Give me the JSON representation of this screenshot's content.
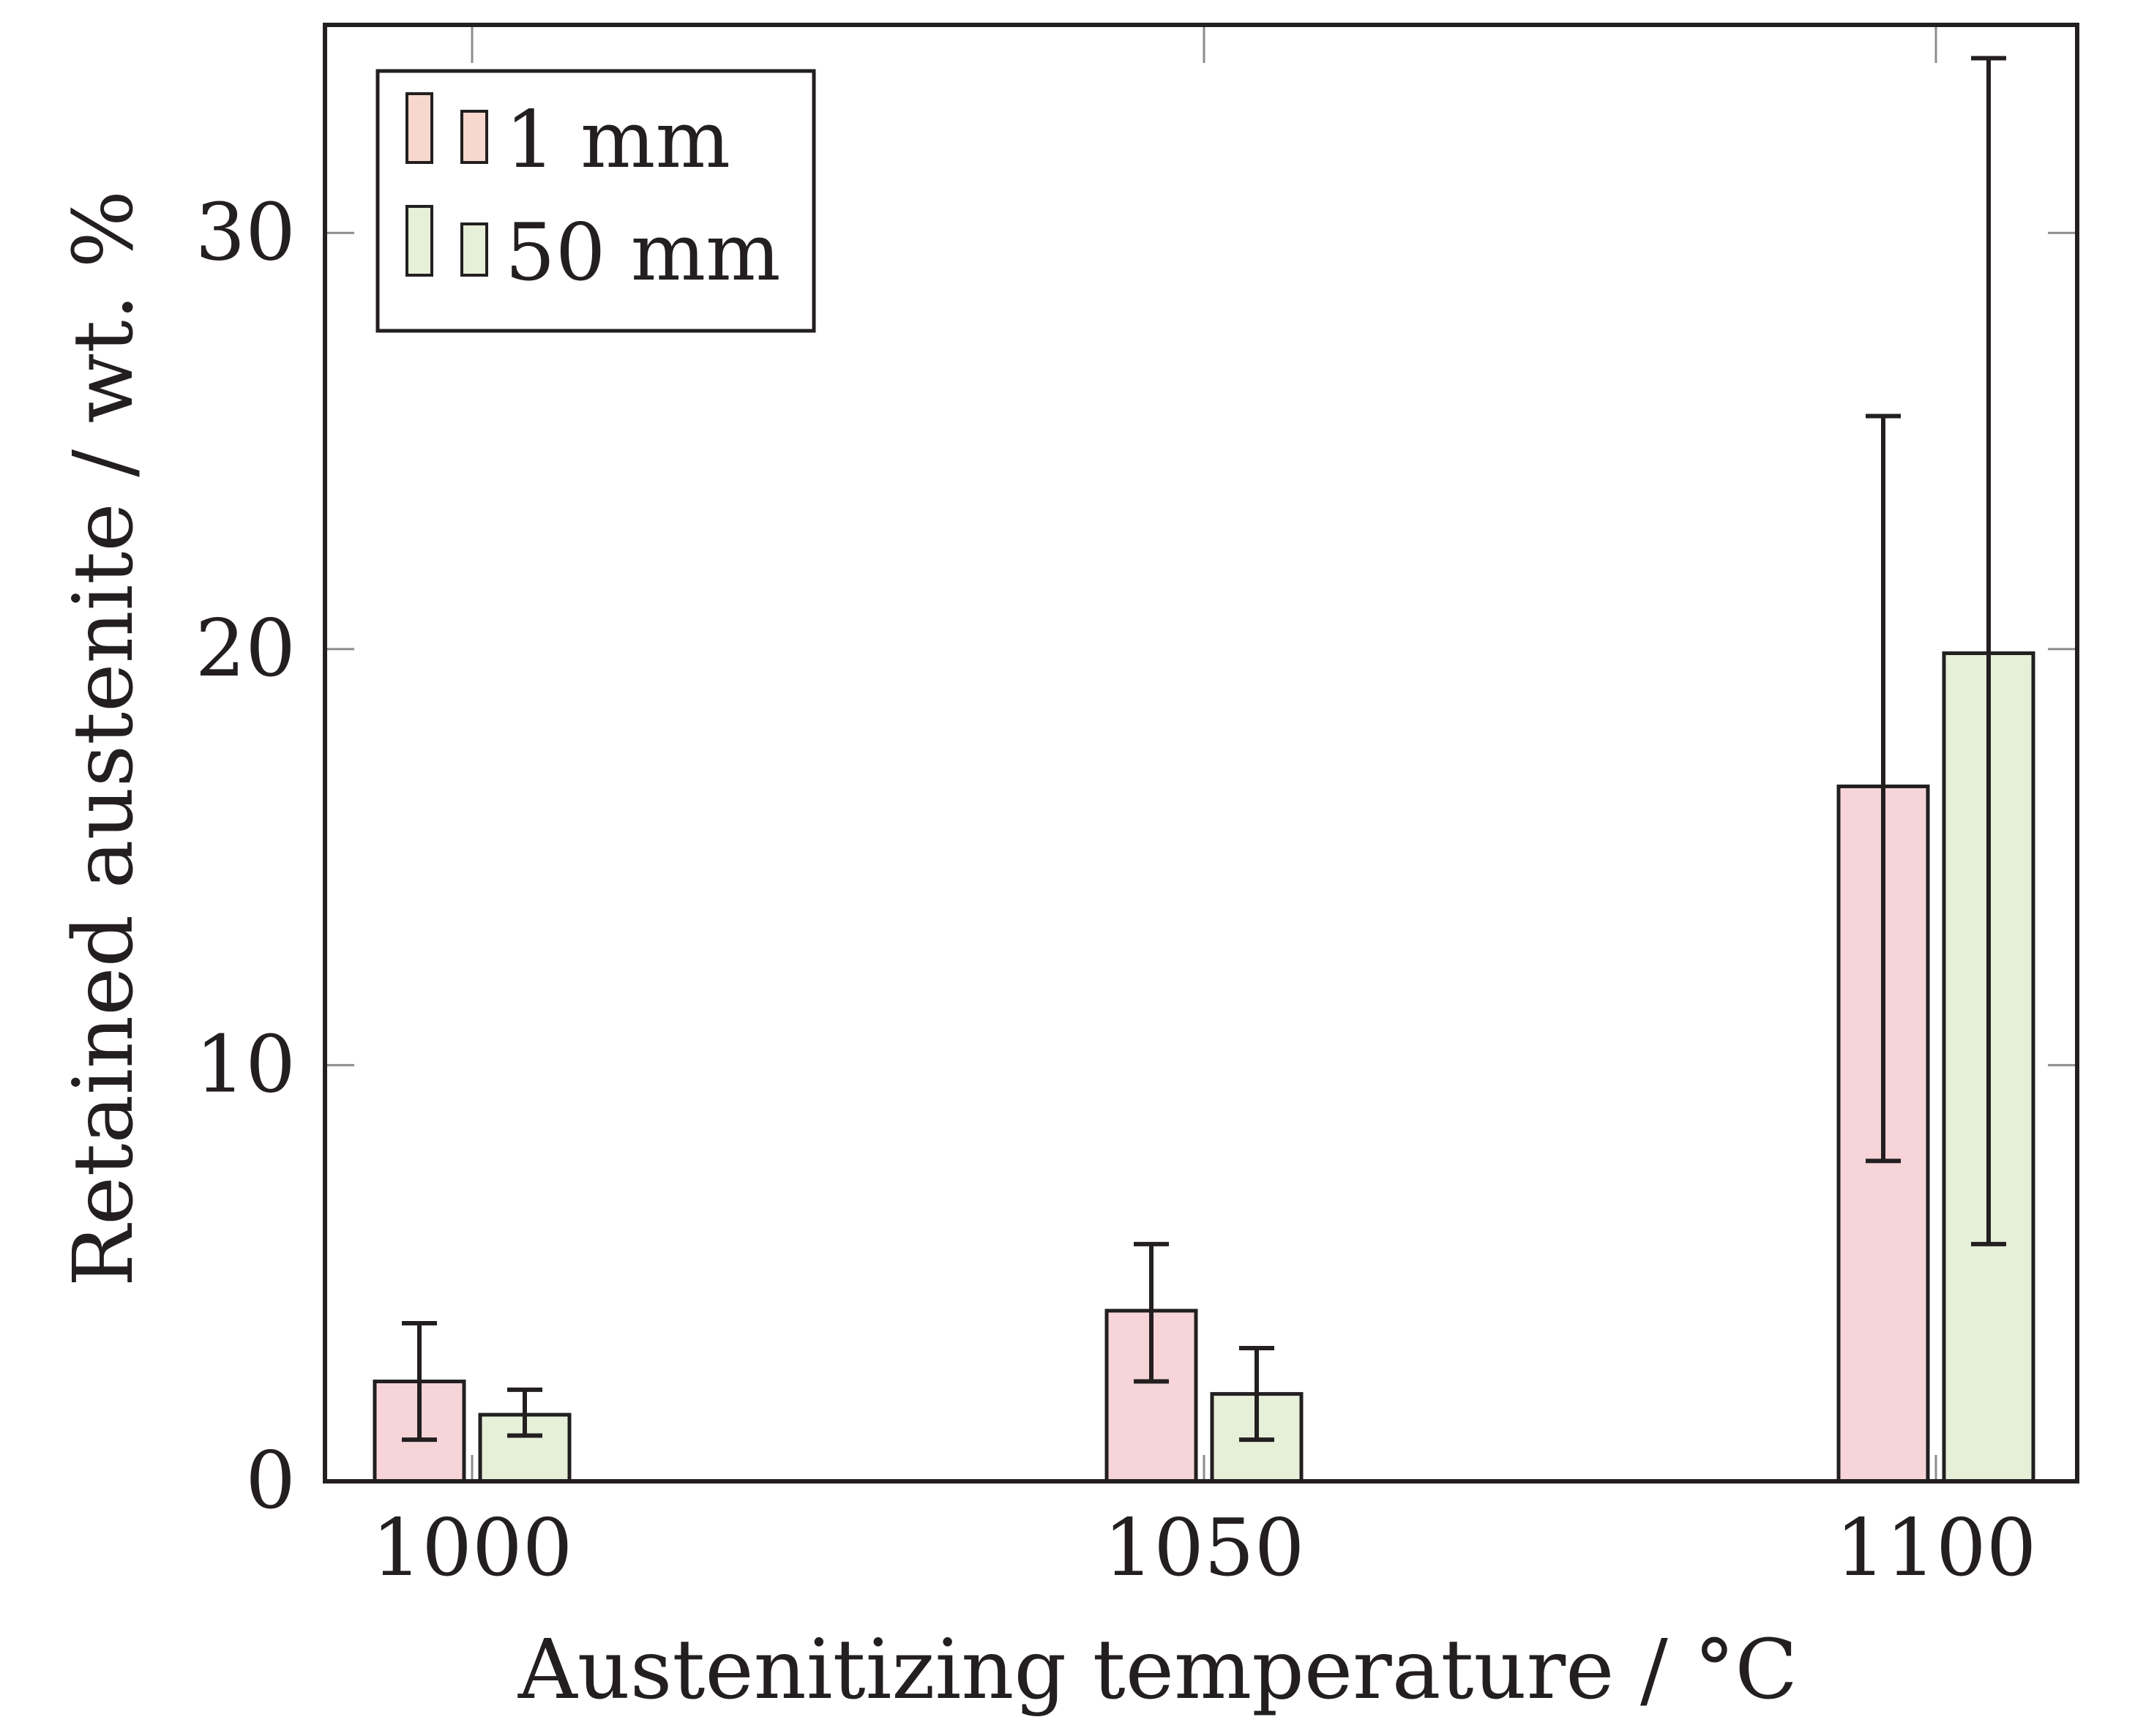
{
  "chart_data": {
    "type": "bar",
    "title": "",
    "xlabel": "Austenitizing temperature / °C",
    "ylabel": "Retained austenite / wt. %",
    "categories": [
      "1000",
      "1050",
      "1100"
    ],
    "ylim": [
      0,
      35
    ],
    "yticks": [
      0,
      10,
      20,
      30
    ],
    "legend_position": "top-left",
    "series": [
      {
        "name": "1 mm",
        "color": "#f6d4d8",
        "values": [
          2.4,
          4.1,
          16.7
        ],
        "error_low": [
          1.0,
          2.4,
          7.7
        ],
        "error_high": [
          3.8,
          5.7,
          25.6
        ]
      },
      {
        "name": "50 mm",
        "color": "#e6efd8",
        "values": [
          1.6,
          2.1,
          19.9
        ],
        "error_low": [
          1.1,
          1.0,
          5.7
        ],
        "error_high": [
          2.2,
          3.2,
          34.2
        ]
      }
    ],
    "colors": {
      "frame": "#231f20",
      "tick": "#8c8c8c",
      "legend_swatch_1": "#f8d8ce",
      "legend_swatch_2": "#e6efd8"
    }
  }
}
